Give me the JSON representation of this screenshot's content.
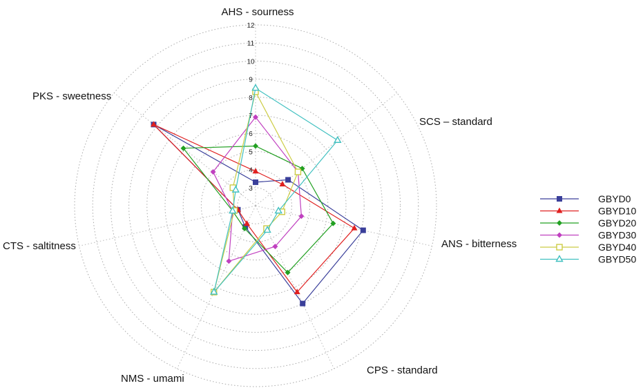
{
  "chart_data": {
    "type": "radar",
    "axes": [
      "AHS - sourness",
      "SCS – standard",
      "ANS - bitterness",
      "CPS - standard",
      "NMS - umami",
      "CTS - saltitness",
      "PKS - sweetness"
    ],
    "r_ticks": [
      "3",
      "4",
      "5",
      "6",
      "7",
      "8",
      "9",
      "10",
      "11",
      "12"
    ],
    "r_range": [
      2,
      12
    ],
    "grid": true,
    "legend_position": "right",
    "series": [
      {
        "name": "GBYD0",
        "color": "#3a3f9a",
        "marker": "square",
        "values": [
          3.3,
          4.3,
          8.1,
          8.0,
          3.3,
          3.0,
          9.2
        ]
      },
      {
        "name": "GBYD10",
        "color": "#e02020",
        "marker": "triangle",
        "values": [
          3.9,
          3.9,
          7.6,
          7.3,
          3.1,
          3.0,
          9.2
        ]
      },
      {
        "name": "GBYD20",
        "color": "#22a022",
        "marker": "diamond",
        "values": [
          5.3,
          5.3,
          6.4,
          6.1,
          3.4,
          3.3,
          7.1
        ]
      },
      {
        "name": "GBYD30",
        "color": "#c040c0",
        "marker": "diamond",
        "values": [
          6.9,
          5.0,
          4.6,
          4.5,
          5.4,
          3.3,
          5.0
        ]
      },
      {
        "name": "GBYD40",
        "color": "#cccc44",
        "marker": "square-open",
        "values": [
          8.3,
          5.0,
          3.5,
          3.4,
          7.3,
          3.2,
          3.6
        ]
      },
      {
        "name": "GBYD50",
        "color": "#40c0c0",
        "marker": "triangle-open",
        "values": [
          8.5,
          7.8,
          3.3,
          3.5,
          7.3,
          3.3,
          3.4
        ]
      }
    ]
  }
}
